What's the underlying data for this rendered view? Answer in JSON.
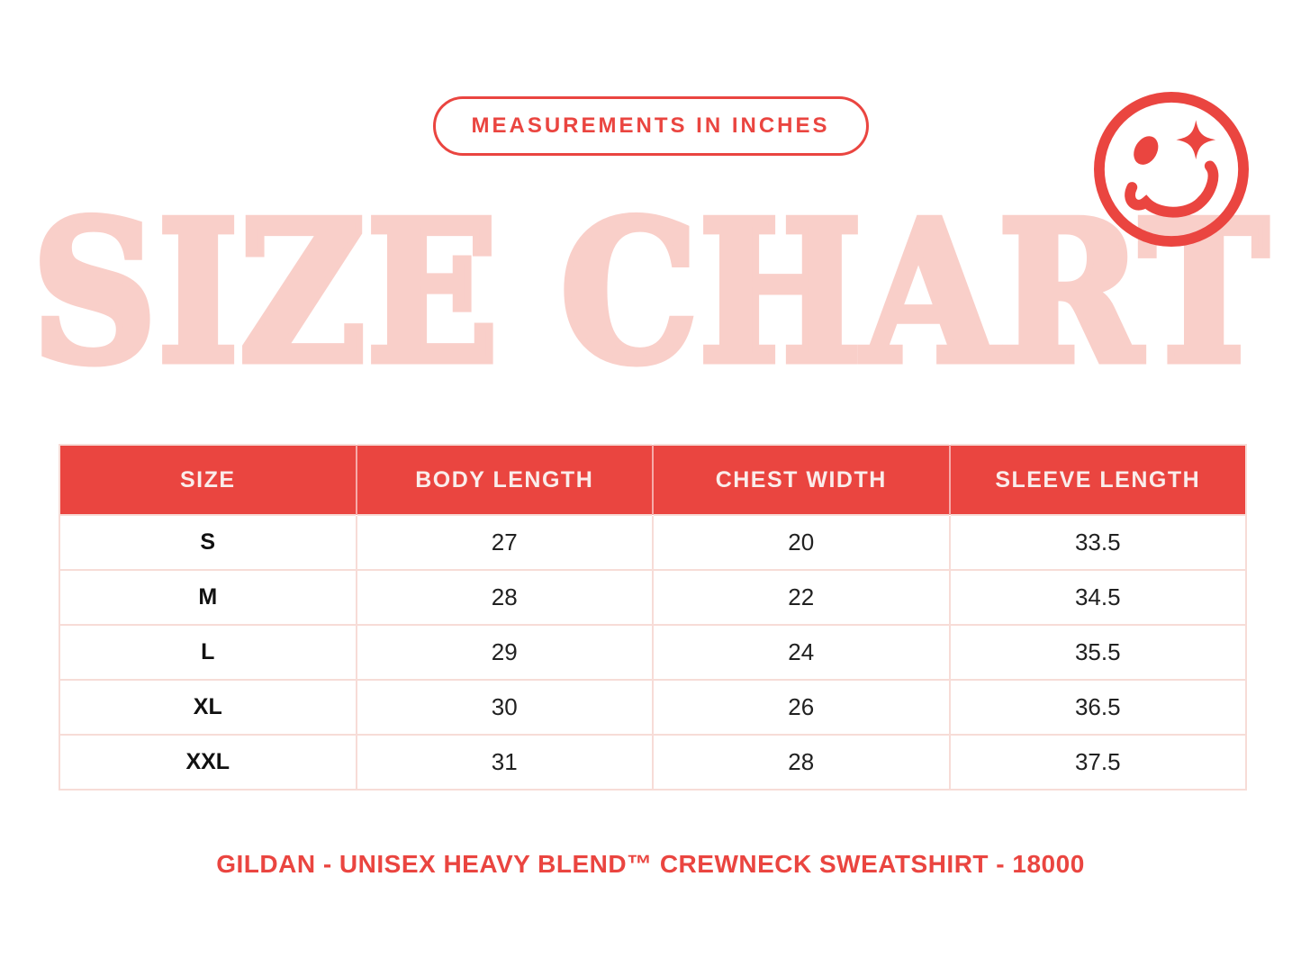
{
  "page": {
    "badge_label": "MEASUREMENTS IN INCHES",
    "title": "SIZE CHART",
    "footer": "GILDAN - UNISEX HEAVY BLEND™ CREWNECK SWEATSHIRT - 18000"
  },
  "icons": {
    "top_right": "winking-smiley-icon"
  },
  "colors": {
    "accent_red": "#EA4540",
    "title_pink": "#F9CFC9",
    "table_border_pink": "#F7DCD7",
    "header_text": "#FAEDEB",
    "body_text": "#212121"
  },
  "chart_data": {
    "type": "table",
    "title": "SIZE CHART",
    "subtitle": "MEASUREMENTS IN INCHES",
    "columns": [
      "SIZE",
      "BODY LENGTH",
      "CHEST WIDTH",
      "SLEEVE LENGTH"
    ],
    "rows": [
      [
        "S",
        "27",
        "20",
        "33.5"
      ],
      [
        "M",
        "28",
        "22",
        "34.5"
      ],
      [
        "L",
        "29",
        "24",
        "35.5"
      ],
      [
        "XL",
        "30",
        "26",
        "36.5"
      ],
      [
        "XXL",
        "31",
        "28",
        "37.5"
      ]
    ],
    "footnote": "GILDAN - UNISEX HEAVY BLEND™ CREWNECK SWEATSHIRT - 18000",
    "units": "inches"
  }
}
